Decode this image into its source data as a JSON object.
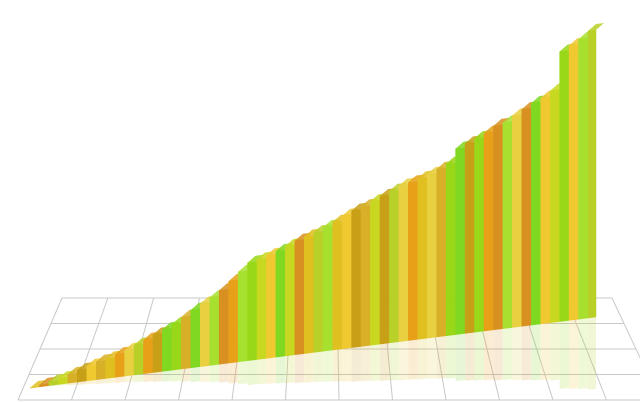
{
  "chart_data": {
    "type": "ribbon",
    "values": [
      0,
      2,
      4,
      6,
      9,
      12,
      15,
      18,
      20,
      23,
      26,
      30,
      34,
      38,
      42,
      46,
      52,
      58,
      63,
      68,
      74,
      82,
      90,
      98,
      100,
      103,
      106,
      110,
      114,
      117,
      120,
      124,
      128,
      133,
      137,
      140,
      144,
      148,
      152,
      156,
      158,
      161,
      164,
      168,
      172,
      186,
      190,
      194,
      198,
      204,
      206,
      212,
      217,
      222,
      226,
      232,
      270,
      275,
      280,
      287
    ]
  }
}
